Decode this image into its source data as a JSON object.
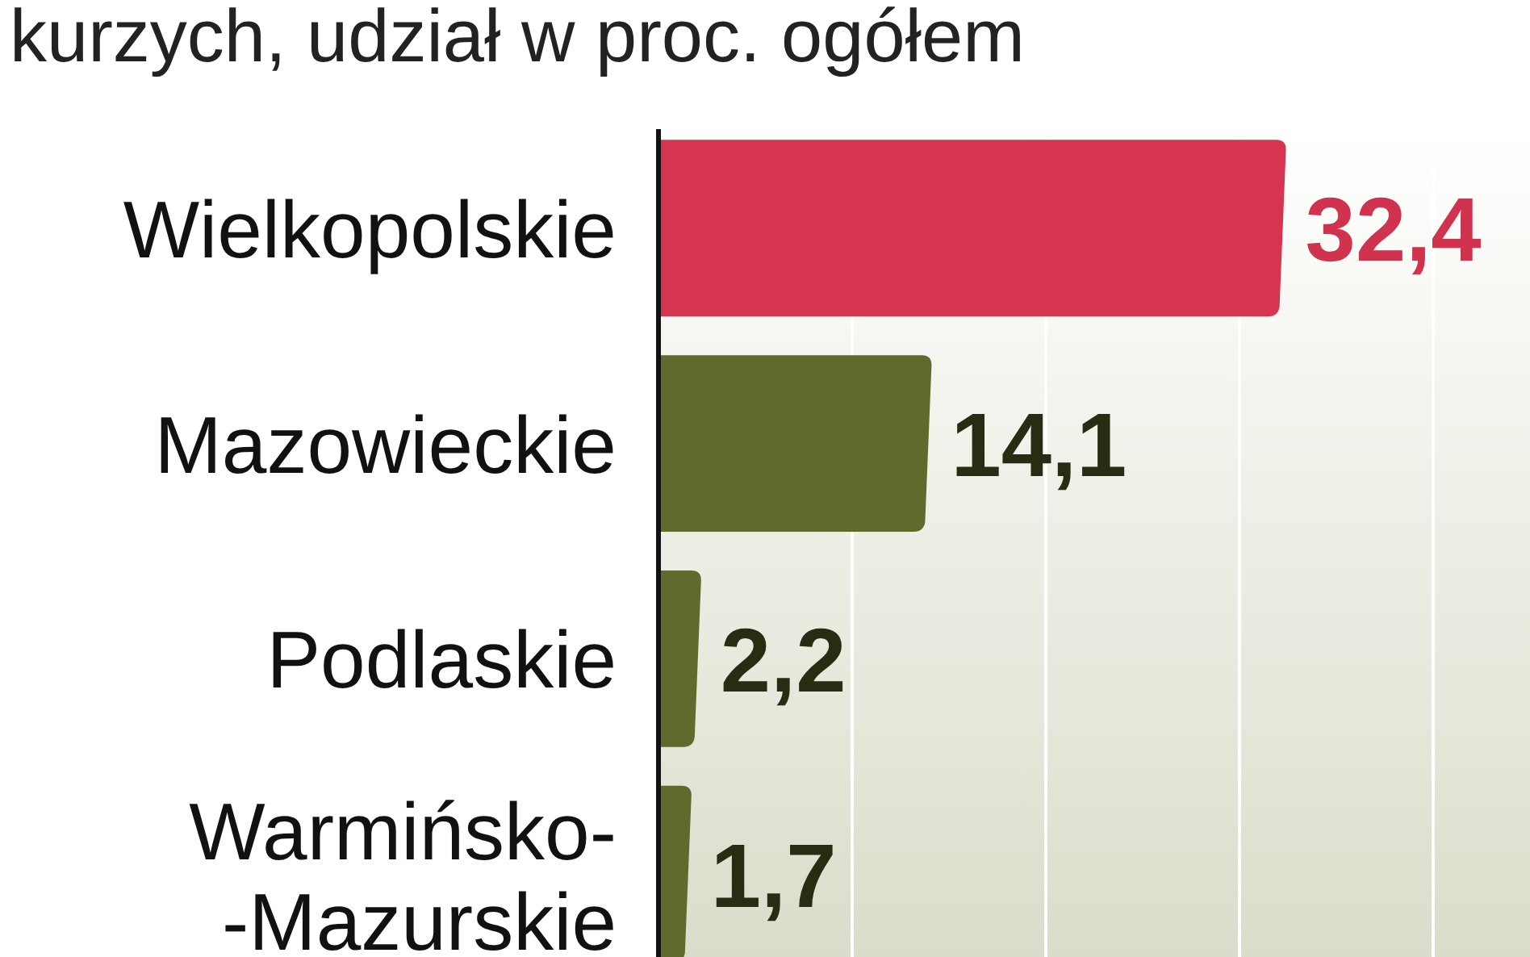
{
  "chart_data": {
    "type": "bar",
    "orientation": "horizontal",
    "title": "kurzych, udział w proc. ogółem",
    "categories": [
      "Wielkopolskie",
      "Mazowieckie",
      "Podlaskie",
      "Warmińsko-\n-Mazurskie"
    ],
    "values": [
      32.4,
      14.1,
      2.2,
      1.7
    ],
    "colors": [
      "#d63550",
      "#5f6b2c",
      "#5f6b2c",
      "#5f6b2c"
    ],
    "value_labels": [
      "32,4",
      "14,1",
      "2,2",
      "1,7"
    ],
    "xlim": [
      0,
      45
    ],
    "xticks": [
      {
        "value": 10,
        "label": null
      },
      {
        "value": 20,
        "label": null
      },
      {
        "value": 30,
        "label": null
      },
      {
        "value": 40,
        "label": null
      }
    ],
    "grid": "x",
    "tick_labels": "y"
  }
}
